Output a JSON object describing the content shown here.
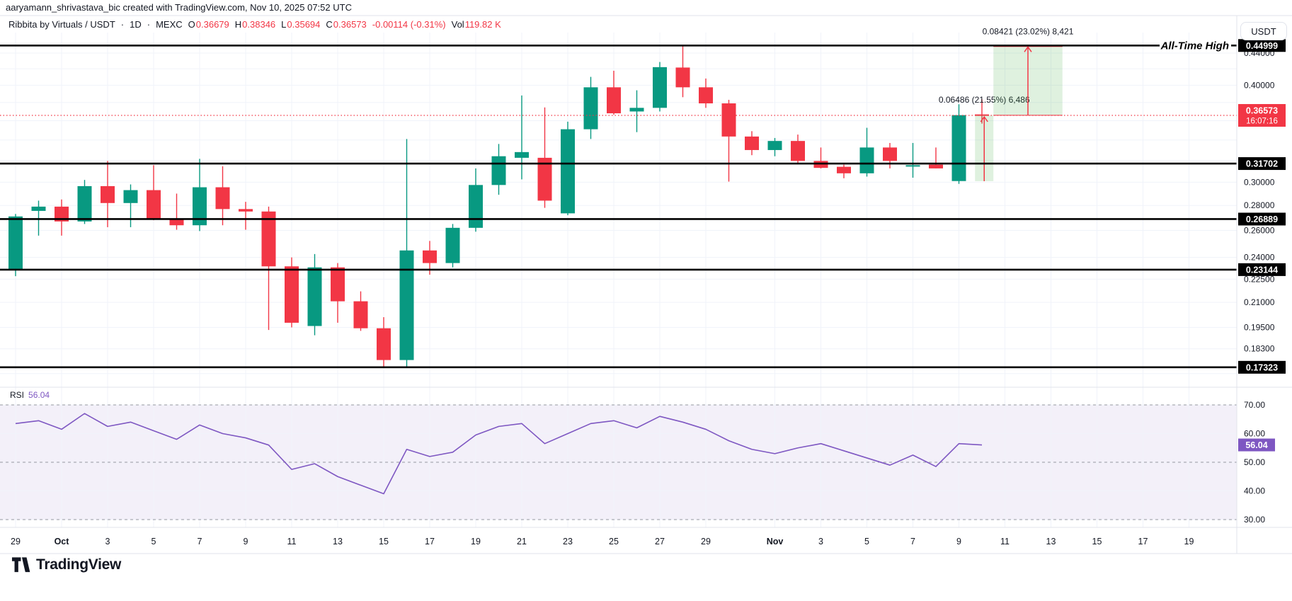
{
  "attribution": "aaryamann_shrivastava_bic created with TradingView.com, Nov 10, 2025 07:52 UTC",
  "header": {
    "symbol": "Ribbita by Virtuals / USDT",
    "sep": "·",
    "interval": "1D",
    "exchange": "MEXC",
    "ohlc": [
      {
        "k": "O",
        "v": "0.36679"
      },
      {
        "k": "H",
        "v": "0.38346"
      },
      {
        "k": "L",
        "v": "0.35694"
      },
      {
        "k": "C",
        "v": "0.36573"
      }
    ],
    "change": "-0.00114 (-0.31%)",
    "vol_label": "Vol",
    "vol_value": "119.82 K"
  },
  "price_scale": {
    "currency": "USDT",
    "ticks": [
      {
        "label": "0.44000",
        "price": 0.44
      },
      {
        "label": "0.40000",
        "price": 0.4
      },
      {
        "label": "0.30000",
        "price": 0.3
      },
      {
        "label": "0.28000",
        "price": 0.28
      },
      {
        "label": "0.26000",
        "price": 0.26
      },
      {
        "label": "0.24000",
        "price": 0.24
      },
      {
        "label": "0.22500",
        "price": 0.225
      },
      {
        "label": "0.21000",
        "price": 0.21
      },
      {
        "label": "0.19500",
        "price": 0.195
      },
      {
        "label": "0.18300",
        "price": 0.183
      }
    ],
    "level_badges": [
      {
        "label": "0.44999",
        "price": 0.44999,
        "ath": true
      },
      {
        "label": "0.31702",
        "price": 0.31702
      },
      {
        "label": "0.26889",
        "price": 0.26889
      },
      {
        "label": "0.23144",
        "price": 0.23144
      },
      {
        "label": "0.17323",
        "price": 0.17323
      }
    ],
    "last_price": {
      "label": "0.36573",
      "countdown": "16:07:16",
      "price": 0.36573
    }
  },
  "annotations": {
    "ath_text": "All-Time High",
    "measure_upper": {
      "label": "0.08421 (23.02%) 8,421",
      "from_price": 0.36578,
      "to_price": 0.44999,
      "x1_bar": 42.5,
      "x2_bar": 45.5
    },
    "measure_lower": {
      "label": "0.06486 (21.55%) 6,486",
      "from_price": 0.30087,
      "to_price": 0.36573,
      "x1_bar": 41.7,
      "x2_bar": 42.5
    }
  },
  "rsi_pane": {
    "label": "RSI",
    "value": "56.04",
    "badge": "56.04",
    "ticks": [
      {
        "label": "70.00",
        "value": 70
      },
      {
        "label": "60.00",
        "value": 60
      },
      {
        "label": "50.00",
        "value": 50
      },
      {
        "label": "40.00",
        "value": 40
      },
      {
        "label": "30.00",
        "value": 30
      }
    ]
  },
  "time_axis": [
    {
      "label": "29",
      "bar": 0
    },
    {
      "label": "Oct",
      "bar": 2
    },
    {
      "label": "3",
      "bar": 4
    },
    {
      "label": "5",
      "bar": 6
    },
    {
      "label": "7",
      "bar": 8
    },
    {
      "label": "9",
      "bar": 10
    },
    {
      "label": "11",
      "bar": 12
    },
    {
      "label": "13",
      "bar": 14
    },
    {
      "label": "15",
      "bar": 16
    },
    {
      "label": "17",
      "bar": 18
    },
    {
      "label": "19",
      "bar": 20
    },
    {
      "label": "21",
      "bar": 22
    },
    {
      "label": "23",
      "bar": 24
    },
    {
      "label": "25",
      "bar": 26
    },
    {
      "label": "27",
      "bar": 28
    },
    {
      "label": "29",
      "bar": 30
    },
    {
      "label": "Nov",
      "bar": 33
    },
    {
      "label": "3",
      "bar": 35
    },
    {
      "label": "5",
      "bar": 37
    },
    {
      "label": "7",
      "bar": 39
    },
    {
      "label": "9",
      "bar": 41
    },
    {
      "label": "11",
      "bar": 43
    },
    {
      "label": "13",
      "bar": 45
    },
    {
      "label": "15",
      "bar": 47
    },
    {
      "label": "17",
      "bar": 49
    },
    {
      "label": "19",
      "bar": 51
    }
  ],
  "chart_data": [
    {
      "type": "candlestick",
      "title": "Ribbita by Virtuals / USDT, 1D, MEXC",
      "scale": "log",
      "ylabel": "Price (USDT)",
      "ylim_shown": [
        0.165,
        0.46
      ],
      "columns": [
        "date",
        "open",
        "high",
        "low",
        "close"
      ],
      "rows": [
        [
          "Sep 29",
          0.231,
          0.273,
          0.227,
          0.271
        ],
        [
          "Sep 30",
          0.2755,
          0.284,
          0.256,
          0.279
        ],
        [
          "Oct 1",
          0.279,
          0.285,
          0.256,
          0.267
        ],
        [
          "Oct 2",
          0.267,
          0.302,
          0.265,
          0.2965
        ],
        [
          "Oct 3",
          0.2965,
          0.3195,
          0.2625,
          0.282
        ],
        [
          "Oct 4",
          0.282,
          0.298,
          0.2625,
          0.293
        ],
        [
          "Oct 5",
          0.293,
          0.3155,
          0.268,
          0.269
        ],
        [
          "Oct 6",
          0.269,
          0.29,
          0.2605,
          0.264
        ],
        [
          "Oct 7",
          0.264,
          0.3215,
          0.2595,
          0.2955
        ],
        [
          "Oct 8",
          0.2955,
          0.3145,
          0.264,
          0.277
        ],
        [
          "Oct 9",
          0.277,
          0.283,
          0.2605,
          0.275
        ],
        [
          "Oct 10",
          0.275,
          0.279,
          0.1935,
          0.2337
        ],
        [
          "Oct 11",
          0.2337,
          0.24,
          0.195,
          0.1977
        ],
        [
          "Oct 12",
          0.1958,
          0.2424,
          0.1905,
          0.233
        ],
        [
          "Oct 13",
          0.233,
          0.236,
          0.1977,
          0.2107
        ],
        [
          "Oct 14",
          0.2107,
          0.217,
          0.193,
          0.1945
        ],
        [
          "Oct 15",
          0.1945,
          0.201,
          0.1735,
          0.177
        ],
        [
          "Oct 16",
          0.177,
          0.341,
          0.1735,
          0.245
        ],
        [
          "Oct 17",
          0.245,
          0.252,
          0.228,
          0.236
        ],
        [
          "Oct 18",
          0.236,
          0.265,
          0.233,
          0.262
        ],
        [
          "Oct 19",
          0.262,
          0.3125,
          0.259,
          0.2975
        ],
        [
          "Oct 20",
          0.2975,
          0.336,
          0.289,
          0.324
        ],
        [
          "Oct 21",
          0.3225,
          0.388,
          0.3025,
          0.328
        ],
        [
          "Oct 22",
          0.3225,
          0.3745,
          0.278,
          0.284
        ],
        [
          "Oct 23",
          0.2735,
          0.359,
          0.272,
          0.351
        ],
        [
          "Oct 24",
          0.351,
          0.41,
          0.341,
          0.3975
        ],
        [
          "Oct 25",
          0.3975,
          0.4175,
          0.3665,
          0.368
        ],
        [
          "Oct 26",
          0.37,
          0.394,
          0.348,
          0.374
        ],
        [
          "Oct 27",
          0.374,
          0.4285,
          0.37,
          0.422
        ],
        [
          "Oct 28",
          0.4215,
          0.4499,
          0.386,
          0.3975
        ],
        [
          "Oct 29",
          0.3975,
          0.408,
          0.374,
          0.379
        ],
        [
          "Oct 30",
          0.379,
          0.383,
          0.3005,
          0.3435
        ],
        [
          "Oct 31",
          0.3435,
          0.349,
          0.325,
          0.33
        ],
        [
          "Nov 1",
          0.33,
          0.342,
          0.324,
          0.339
        ],
        [
          "Nov 2",
          0.339,
          0.3455,
          0.3165,
          0.3195
        ],
        [
          "Nov 3",
          0.3195,
          0.3325,
          0.3125,
          0.313
        ],
        [
          "Nov 4",
          0.314,
          0.316,
          0.3035,
          0.308
        ],
        [
          "Nov 5",
          0.308,
          0.3525,
          0.305,
          0.3325
        ],
        [
          "Nov 6",
          0.3325,
          0.337,
          0.3125,
          0.3195
        ],
        [
          "Nov 7",
          0.315,
          0.337,
          0.304,
          0.3155
        ],
        [
          "Nov 8",
          0.316,
          0.3325,
          0.3125,
          0.3125
        ],
        [
          "Nov 9",
          0.301,
          0.378,
          0.2985,
          0.366
        ],
        [
          "Nov 10",
          0.36679,
          0.38346,
          0.35694,
          0.36573
        ]
      ]
    },
    {
      "type": "line",
      "title": "RSI",
      "legend_value": 56.04,
      "range_shown": [
        30,
        70
      ],
      "levels": [
        70,
        50,
        30
      ],
      "values": [
        63.5,
        64.5,
        61.5,
        67,
        62.5,
        64,
        61,
        58,
        63,
        60,
        58.5,
        56,
        47.5,
        49.5,
        45,
        42,
        39,
        54.5,
        52,
        53.5,
        59.5,
        62.5,
        63.5,
        56.5,
        60,
        63.5,
        64.5,
        62,
        66,
        64,
        61.5,
        57.5,
        54.5,
        53,
        55,
        56.5,
        54,
        51.5,
        49,
        52.5,
        48.5,
        56.5,
        56.04
      ]
    }
  ],
  "logo": {
    "text": "TradingView"
  },
  "colors": {
    "up": "#089981",
    "down": "#f23645",
    "accent_red": "#f23645",
    "purple": "#7e57c2",
    "black_line": "#000000",
    "text": "#131722",
    "grid": "#f0f3fa",
    "separator": "#e0e3eb",
    "measure_fill": "rgba(76,175,80,0.18)",
    "band_fill": "rgba(126,87,194,0.09)",
    "dash_gray": "#9598a1"
  }
}
